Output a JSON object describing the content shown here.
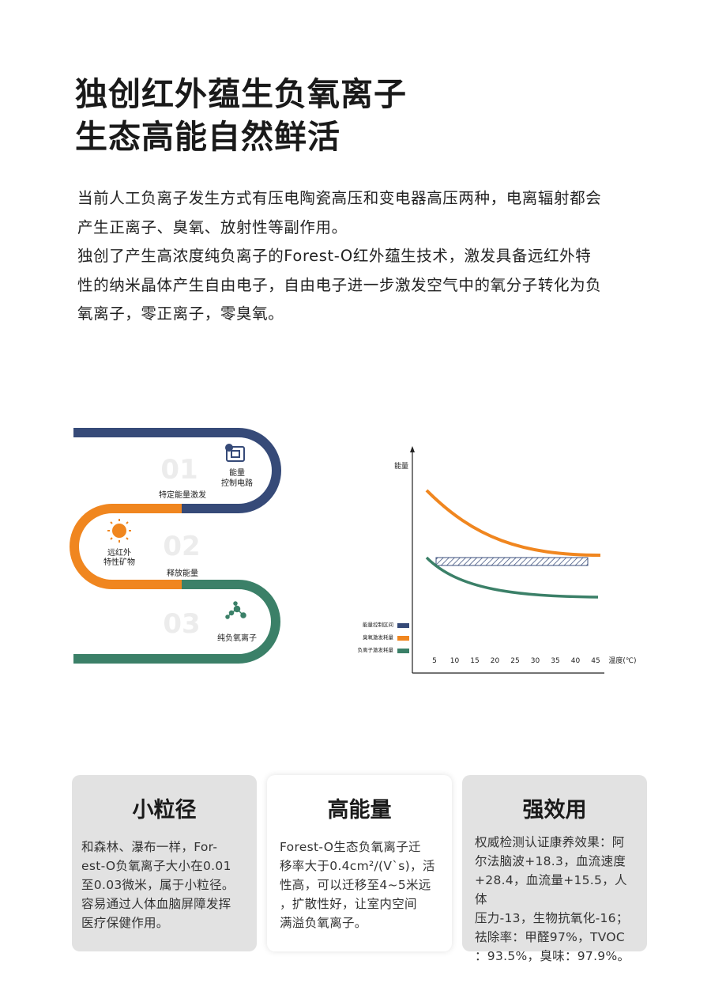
{
  "header": {
    "title_lines": [
      "独创红外蕴生负氧离子",
      "生态高能自然鲜活"
    ]
  },
  "intro": {
    "lines": [
      "当前人工负离子发生方式有压电陶瓷高压和变电器高压两种，电离辐射都会",
      "产生正离子、臭氧、放射性等副作用。",
      "独创了产生高浓度纯负离子的Forest-O红外蕴生技术，激发具备远红外特",
      "性的纳米晶体产生自由电子，自由电子进一步激发空气中的氧分子转化为负",
      "氧离子，零正离子，零臭氧。"
    ]
  },
  "process": {
    "steps": [
      {
        "number": "01",
        "label": [
          "能量",
          "控制电路"
        ],
        "caption": "特定能量激发"
      },
      {
        "number": "02",
        "label": [
          "远红外",
          "特性矿物"
        ],
        "caption": "释放能量"
      },
      {
        "number": "03",
        "label": [
          "纯负氧离子"
        ]
      }
    ]
  },
  "energy_chart": {
    "y_label": "能量",
    "x_label": "温度(℃)",
    "xticks": [
      5,
      10,
      15,
      20,
      25,
      30,
      35,
      40,
      45
    ],
    "legend": [
      "能量控制区间",
      "臭氧激发耗量",
      "负离子激发耗量"
    ]
  },
  "cards": [
    {
      "title": "小粒径",
      "lines": [
        "和森林、瀑布一样，For-",
        "est-O负氧离子大小在0.01",
        "至0.03微米，属于小粒径。",
        "容易通过人体血脑屏障发挥",
        "医疗保健作用。"
      ]
    },
    {
      "title": "高能量",
      "lines": [
        "Forest-O生态负氧离子迁",
        "移率大于0.4cm²/(V`s)，活",
        "性高，可以迁移至4~5米远",
        "，扩散性好，让室内空间",
        "满溢负氧离子。"
      ]
    },
    {
      "title": "强效用",
      "lines": [
        "权威检测认证康养效果：阿",
        "尔法脑波+18.3，血流速度",
        "+28.4，血流量+15.5，人体",
        "压力-13，生物抗氧化-16；",
        "祛除率：甲醛97%，TVOC",
        "：93.5%，臭味：97.9%。"
      ]
    }
  ]
}
